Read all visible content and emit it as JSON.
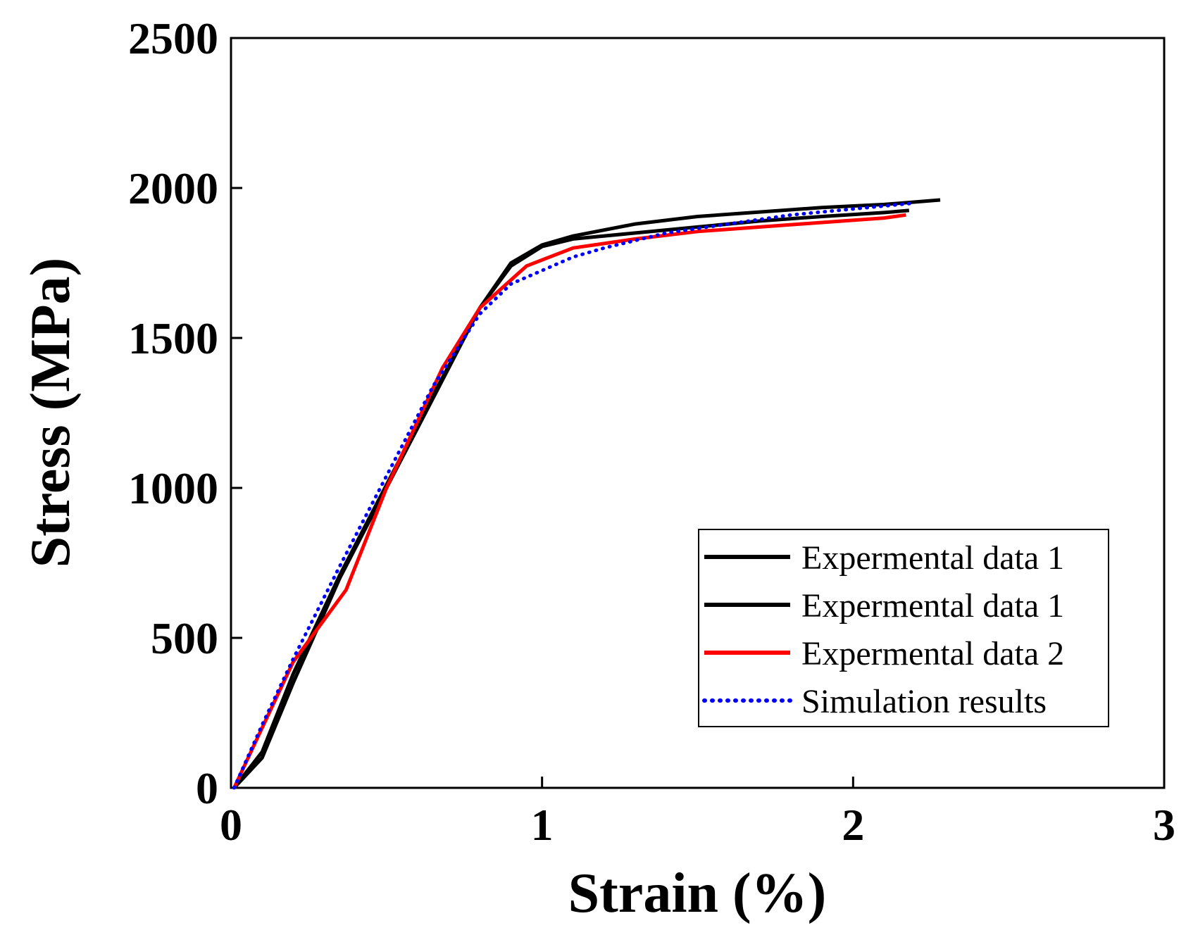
{
  "chart_data": {
    "type": "line",
    "title": "",
    "xlabel": "Strain (%)",
    "ylabel": "Stress (MPa)",
    "xlim": [
      0,
      3
    ],
    "ylim": [
      0,
      2500
    ],
    "xticks": [
      0,
      1,
      2,
      3
    ],
    "yticks": [
      0,
      500,
      1000,
      1500,
      2000,
      2500
    ],
    "xtick_labels": [
      "0",
      "1",
      "2",
      "3"
    ],
    "ytick_labels": [
      "0",
      "500",
      "1000",
      "1500",
      "2000",
      "2500"
    ],
    "grid": false,
    "legend_position": "bottom-right",
    "series": [
      {
        "name": "Expermental data 1",
        "color": "#000000",
        "style": "solid",
        "x": [
          0.01,
          0.1,
          0.2,
          0.35,
          0.5,
          0.65,
          0.8,
          0.9,
          1.0,
          1.1,
          1.3,
          1.5,
          1.7,
          1.9,
          2.1,
          2.28
        ],
        "y": [
          0,
          100,
          350,
          700,
          1000,
          1300,
          1600,
          1750,
          1810,
          1840,
          1880,
          1905,
          1920,
          1935,
          1945,
          1960
        ]
      },
      {
        "name": "Expermental data 1",
        "color": "#000000",
        "style": "solid",
        "x": [
          0.01,
          0.1,
          0.2,
          0.35,
          0.5,
          0.65,
          0.8,
          0.9,
          1.0,
          1.1,
          1.3,
          1.5,
          1.7,
          1.9,
          2.1,
          2.18
        ],
        "y": [
          0,
          120,
          380,
          710,
          1010,
          1310,
          1600,
          1740,
          1805,
          1830,
          1850,
          1870,
          1890,
          1905,
          1918,
          1925
        ]
      },
      {
        "name": "Expermental data 2",
        "color": "#ff0000",
        "style": "solid",
        "x": [
          0.01,
          0.1,
          0.2,
          0.37,
          0.5,
          0.68,
          0.8,
          0.95,
          1.1,
          1.3,
          1.5,
          1.7,
          1.9,
          2.1,
          2.17
        ],
        "y": [
          0,
          200,
          420,
          660,
          1000,
          1400,
          1600,
          1740,
          1800,
          1830,
          1855,
          1870,
          1885,
          1900,
          1910
        ]
      },
      {
        "name": "Simulation results",
        "color": "#0000ff",
        "style": "dotted",
        "x": [
          0.01,
          0.1,
          0.2,
          0.35,
          0.5,
          0.65,
          0.8,
          0.9,
          1.0,
          1.1,
          1.2,
          1.4,
          1.6,
          1.8,
          2.0,
          2.2
        ],
        "y": [
          0,
          210,
          430,
          740,
          1040,
          1340,
          1580,
          1680,
          1725,
          1770,
          1800,
          1850,
          1880,
          1910,
          1930,
          1950
        ]
      }
    ]
  }
}
